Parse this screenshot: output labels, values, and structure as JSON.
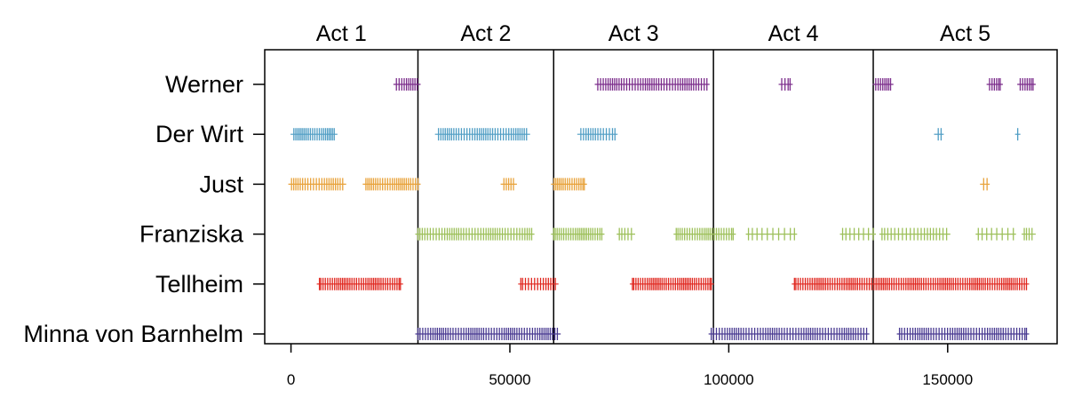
{
  "chart_data": {
    "type": "scatter",
    "marker": "vertical-bar",
    "xlim": [
      -6000,
      175000
    ],
    "x_ticks": [
      0,
      50000,
      100000,
      150000
    ],
    "x_tick_labels": [
      "0",
      "50000",
      "100000",
      "150000"
    ],
    "grid": false,
    "legend": "none",
    "acts": [
      {
        "label": "Act 1",
        "start": -6000,
        "end": 29000
      },
      {
        "label": "Act 2",
        "start": 29000,
        "end": 60000
      },
      {
        "label": "Act 3",
        "start": 60000,
        "end": 96500
      },
      {
        "label": "Act 4",
        "start": 96500,
        "end": 133000
      },
      {
        "label": "Act 5",
        "start": 133000,
        "end": 175000
      }
    ],
    "series": [
      {
        "name": "Werner",
        "color": "#7b2c8b",
        "segments": [
          [
            24000,
            29000,
            10
          ],
          [
            70000,
            95000,
            45
          ],
          [
            112000,
            114000,
            4
          ],
          [
            133500,
            137000,
            8
          ],
          [
            159500,
            162000,
            6
          ],
          [
            166500,
            169500,
            7
          ]
        ]
      },
      {
        "name": "Der Wirt",
        "color": "#4f9dc4",
        "segments": [
          [
            500,
            10000,
            22
          ],
          [
            33500,
            54000,
            38
          ],
          [
            66000,
            74000,
            14
          ],
          [
            147500,
            148500,
            2
          ],
          [
            166000,
            166000,
            1
          ]
        ]
      },
      {
        "name": "Just",
        "color": "#e8a23a",
        "segments": [
          [
            0,
            12000,
            22
          ],
          [
            17000,
            29000,
            25
          ],
          [
            48500,
            51000,
            5
          ],
          [
            60000,
            67000,
            16
          ],
          [
            158000,
            159000,
            2
          ]
        ]
      },
      {
        "name": "Franziska",
        "color": "#9dc05a",
        "segments": [
          [
            29000,
            55000,
            45
          ],
          [
            60000,
            71000,
            24
          ],
          [
            75000,
            78000,
            5
          ],
          [
            88000,
            101000,
            26
          ],
          [
            104500,
            115000,
            10
          ],
          [
            126000,
            133000,
            8
          ],
          [
            135000,
            150000,
            20
          ],
          [
            157000,
            165000,
            8
          ],
          [
            167500,
            169500,
            4
          ]
        ]
      },
      {
        "name": "Tellheim",
        "color": "#e0261e",
        "segments": [
          [
            6500,
            25000,
            40
          ],
          [
            52500,
            60500,
            14
          ],
          [
            78000,
            96000,
            40
          ],
          [
            115000,
            168000,
            110
          ]
        ]
      },
      {
        "name": "Minna von Barnhelm",
        "color": "#4a3b92",
        "segments": [
          [
            29000,
            61000,
            60
          ],
          [
            96000,
            131500,
            62
          ],
          [
            139000,
            168000,
            52
          ]
        ]
      }
    ]
  }
}
